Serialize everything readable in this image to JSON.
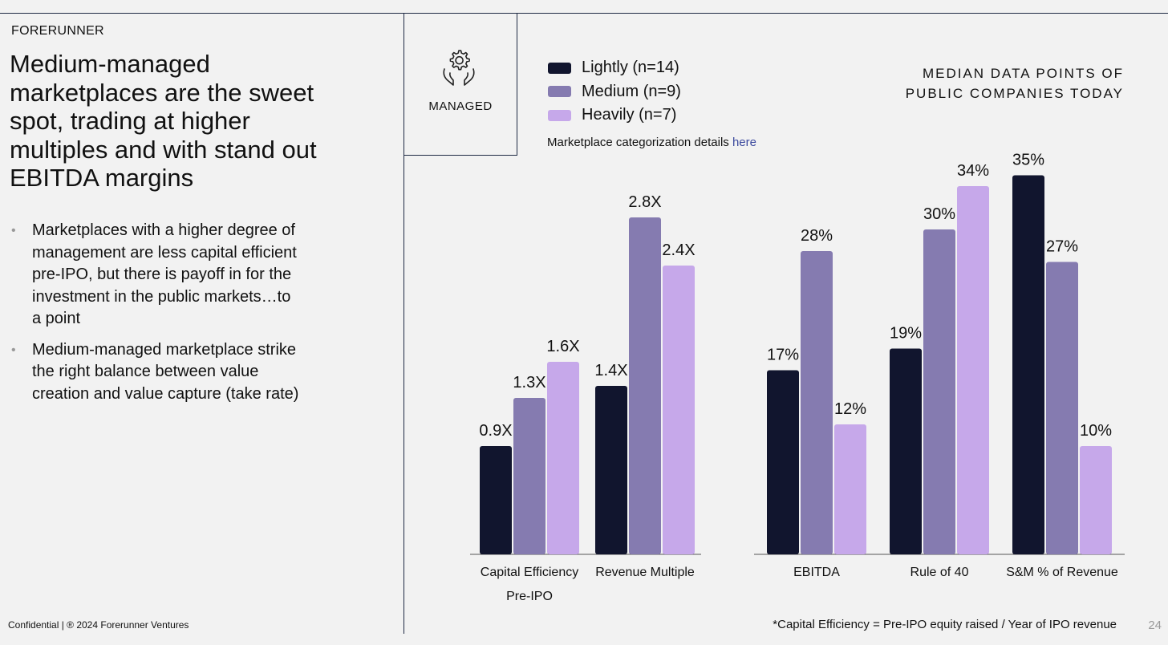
{
  "brand": "FORERUNNER",
  "headline": "Medium-managed marketplaces are the sweet spot, trading at higher multiples and with stand out EBITDA margins",
  "bullets": [
    "Marketplaces with a higher degree of management are less capital efficient pre-IPO, but there is payoff in for the investment in the public markets…to a point",
    "Medium-managed marketplace strike the right balance between value creation and value capture (take rate)"
  ],
  "managed_box": {
    "label": "MANAGED",
    "icon": "gear-in-hands-icon"
  },
  "legend": [
    {
      "label": "Lightly (n=14)",
      "color": "#11152e"
    },
    {
      "label": "Medium (n=9)",
      "color": "#857bb0"
    },
    {
      "label": "Heavily (n=7)",
      "color": "#c6a8ea"
    }
  ],
  "categorization_note": {
    "text": "Marketplace categorization details ",
    "link": "here"
  },
  "median_title": {
    "line1": "MEDIAN DATA POINTS OF",
    "line2": "PUBLIC COMPANIES TODAY"
  },
  "chart_data": [
    {
      "type": "bar",
      "categories": [
        "Capital Efficiency Pre-IPO",
        "Revenue Multiple"
      ],
      "series": [
        {
          "name": "Lightly (n=14)",
          "values": [
            0.9,
            1.4
          ],
          "labels": [
            "0.9X",
            "1.4X"
          ]
        },
        {
          "name": "Medium (n=9)",
          "values": [
            1.3,
            2.8
          ],
          "labels": [
            "1.3X",
            "2.8X"
          ]
        },
        {
          "name": "Heavily (n=7)",
          "values": [
            1.6,
            2.4
          ],
          "labels": [
            "1.6X",
            "2.4X"
          ]
        }
      ],
      "ylim": [
        0,
        3.5
      ],
      "grid": false
    },
    {
      "type": "bar",
      "categories": [
        "EBITDA",
        "Rule of 40",
        "S&M % of Revenue"
      ],
      "series": [
        {
          "name": "Lightly (n=14)",
          "values": [
            17,
            19,
            35
          ],
          "labels": [
            "17%",
            "19%",
            "35%"
          ]
        },
        {
          "name": "Medium (n=9)",
          "values": [
            28,
            30,
            27
          ],
          "labels": [
            "28%",
            "30%",
            "27%"
          ]
        },
        {
          "name": "Heavily (n=7)",
          "values": [
            12,
            34,
            10
          ],
          "labels": [
            "12%",
            "34%",
            "10%"
          ]
        }
      ],
      "ylim": [
        0,
        45
      ],
      "grid": false
    }
  ],
  "footer": {
    "confidential": "Confidential | ® 2024 Forerunner Ventures",
    "footnote": "*Capital Efficiency = Pre-IPO equity raised / Year of IPO revenue",
    "page": "24"
  }
}
